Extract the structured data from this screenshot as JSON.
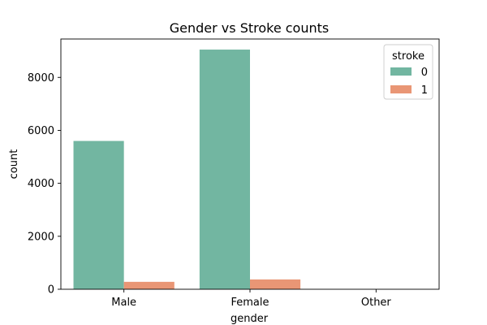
{
  "chart_data": {
    "type": "bar",
    "title": "Gender vs Stroke counts",
    "xlabel": "gender",
    "ylabel": "count",
    "categories": [
      "Male",
      "Female",
      "Other"
    ],
    "series": [
      {
        "name": "0",
        "color": "#72b6a1",
        "values": [
          5600,
          9050,
          1
        ]
      },
      {
        "name": "1",
        "color": "#e99675",
        "values": [
          280,
          370,
          0
        ]
      }
    ],
    "ylim": [
      0,
      9450
    ],
    "yticks": [
      0,
      2000,
      4000,
      6000,
      8000
    ],
    "legend": {
      "title": "stroke",
      "position": "top-right"
    },
    "grid": false
  }
}
